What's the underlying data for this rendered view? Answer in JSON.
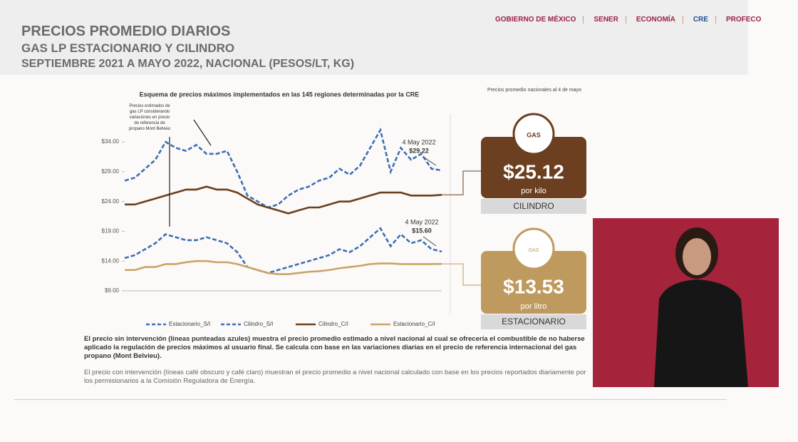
{
  "header": {
    "title": "PRECIOS PROMEDIO DIARIOS",
    "subtitle": "GAS LP ESTACIONARIO Y CILINDRO",
    "period": "SEPTIEMBRE 2021 A MAYO 2022, NACIONAL (PESOS/LT, KG)",
    "logos": [
      "GOBIERNO DE MÉXICO",
      "SENER",
      "ECONOMÍA",
      "CRE",
      "PROFECO"
    ]
  },
  "chart_data": {
    "type": "line",
    "title": "Esquema de precios máximos implementados en las 145 regiones determinadas por la CRE",
    "categories": [
      null,
      null,
      null,
      null,
      null,
      null,
      null,
      null,
      null,
      null,
      null,
      null,
      null,
      null,
      null,
      null,
      null,
      null,
      null,
      null,
      null,
      null,
      null,
      null,
      null,
      null,
      null,
      null,
      null,
      null,
      null,
      null
    ],
    "series": [
      {
        "name": "Estacionario_S/I",
        "color": "#3d6fb6",
        "dashed": true,
        "values": [
          14.5,
          15,
          16,
          17,
          18.5,
          18,
          17.5,
          17.5,
          18,
          17.5,
          17,
          15.5,
          13,
          12.5,
          12,
          12.5,
          13,
          13.5,
          14,
          14.5,
          15,
          16,
          15.5,
          16.5,
          18,
          19.5,
          16.5,
          18.5,
          17,
          17.5,
          16,
          15.6
        ]
      },
      {
        "name": "Cilindro_S/I",
        "color": "#3d6fb6",
        "dashed": true,
        "values": [
          27.5,
          28,
          29.5,
          31,
          34,
          33,
          32.5,
          33.5,
          32,
          32,
          32.5,
          29,
          25,
          24,
          23,
          23.5,
          25,
          26,
          26.5,
          27.5,
          28,
          29.5,
          28.5,
          30,
          33,
          36,
          29,
          33,
          31,
          32,
          29.5,
          29.22
        ]
      },
      {
        "name": "Cilindro_C/I",
        "color": "#6b3f1f",
        "dashed": false,
        "values": [
          23.5,
          23.5,
          24,
          24.5,
          25,
          25.5,
          26,
          26,
          26.5,
          26,
          26,
          25.5,
          24.5,
          23.5,
          23,
          22.5,
          22,
          22.5,
          23,
          23,
          23.5,
          24,
          24,
          24.5,
          25,
          25.5,
          25.5,
          25.5,
          25,
          25,
          25,
          25.12
        ]
      },
      {
        "name": "Estacionario_C/I",
        "color": "#c8a46a",
        "dashed": false,
        "values": [
          12.5,
          12.5,
          13,
          13,
          13.5,
          13.5,
          13.8,
          14,
          14,
          13.8,
          13.8,
          13.5,
          13,
          12.5,
          12,
          11.8,
          11.8,
          12,
          12.2,
          12.3,
          12.5,
          12.8,
          13,
          13.2,
          13.5,
          13.6,
          13.6,
          13.5,
          13.5,
          13.5,
          13.5,
          13.53
        ]
      }
    ],
    "ylim": [
      9,
      37
    ],
    "yticks": [
      {
        "value": 9,
        "label": "$9.00"
      },
      {
        "value": 14,
        "label": "$14.00"
      },
      {
        "value": 19,
        "label": "$19.00"
      },
      {
        "value": 24,
        "label": "$24.00"
      },
      {
        "value": 29,
        "label": "$29.00"
      },
      {
        "value": 34,
        "label": "$34.00"
      }
    ],
    "annotations": [
      "Precios estimados de gas LP considerando variaciones en precio de referencia de propano Mont Belvieu",
      "4 May 2022",
      "$29.22",
      "4 May 2022",
      "$15.60"
    ]
  },
  "side": {
    "heading": "Precios promedio nacionales al 4 de mayo",
    "cilindro": {
      "icon": "GAS",
      "price": "$25.12",
      "unit": "por kilo",
      "label": "CILINDRO"
    },
    "estacionario": {
      "icon": "GAS",
      "price": "$13.53",
      "unit": "por litro",
      "label": "ESTACIONARIO"
    }
  },
  "body": [
    "El precio sin intervención (líneas punteadas azules) muestra el precio promedio estimado a nivel nacional al cual se ofrecería el combustible de no haberse aplicado la regulación de precios máximos al usuario final. Se calcula con base en las variaciones diarias en el precio de referencia internacional del gas propano (Mont Belvieu).",
    "El precio con intervención (líneas café obscuro y café claro) muestran el precio promedio a nivel nacional calculado con base en los precios reportados diariamente por los permisionarios a la Comisión Reguladora de Energía."
  ]
}
